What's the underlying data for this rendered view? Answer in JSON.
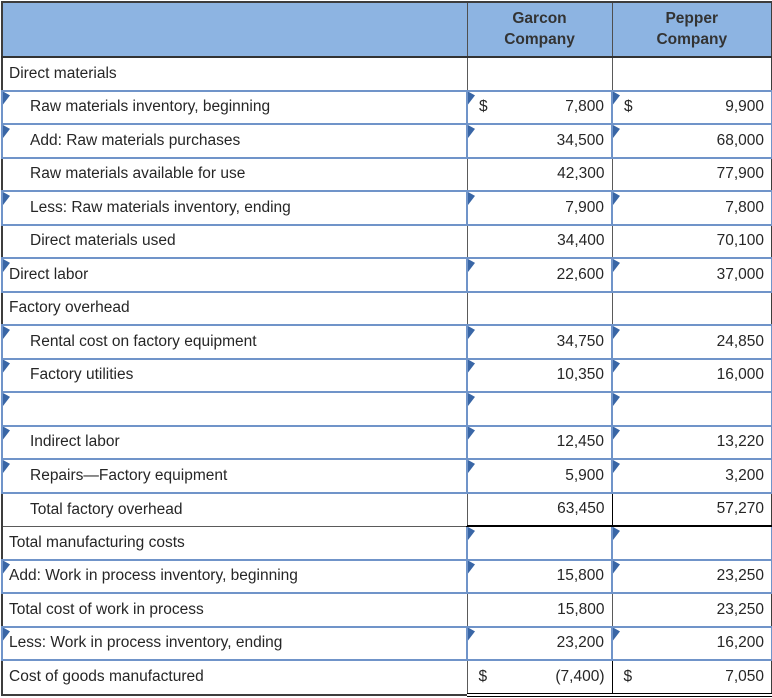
{
  "table": {
    "columns": [
      {
        "label": ""
      },
      {
        "label": "Garcon Company"
      },
      {
        "label": "Pepper Company"
      }
    ],
    "rows": [
      {
        "label": "Direct materials",
        "type": "section",
        "indent": false,
        "garcon": "",
        "pepper": ""
      },
      {
        "label": "Raw materials inventory, beginning",
        "type": "entry",
        "indent": true,
        "garcon": "7,800",
        "pepper": "9,900",
        "garcon_dollar": "$",
        "pepper_dollar": "$"
      },
      {
        "label": "Add: Raw materials purchases",
        "type": "entry",
        "indent": true,
        "garcon": "34,500",
        "pepper": "68,000"
      },
      {
        "label": "Raw materials available for use",
        "type": "computed",
        "indent": true,
        "garcon": "42,300",
        "pepper": "77,900"
      },
      {
        "label": "Less: Raw materials inventory, ending",
        "type": "entry",
        "indent": true,
        "garcon": "7,900",
        "pepper": "7,800"
      },
      {
        "label": "Direct materials used",
        "type": "computed",
        "indent": true,
        "garcon": "34,400",
        "pepper": "70,100"
      },
      {
        "label": "Direct labor",
        "type": "entry",
        "indent": false,
        "garcon": "22,600",
        "pepper": "37,000"
      },
      {
        "label": "Factory overhead",
        "type": "section",
        "indent": false,
        "garcon": "",
        "pepper": ""
      },
      {
        "label": "Rental cost on factory equipment",
        "type": "entry",
        "indent": true,
        "garcon": "34,750",
        "pepper": "24,850"
      },
      {
        "label": "Factory utilities",
        "type": "entry",
        "indent": true,
        "garcon": "10,350",
        "pepper": "16,000"
      },
      {
        "label": "",
        "type": "entry",
        "indent": true,
        "garcon": "",
        "pepper": ""
      },
      {
        "label": "Indirect labor",
        "type": "entry",
        "indent": true,
        "garcon": "12,450",
        "pepper": "13,220"
      },
      {
        "label": "Repairs—Factory equipment",
        "type": "entry",
        "indent": true,
        "garcon": "5,900",
        "pepper": "3,200"
      },
      {
        "label": "Total factory overhead",
        "type": "subtotal",
        "indent": true,
        "garcon": "63,450",
        "pepper": "57,270"
      },
      {
        "label": "Total manufacturing costs",
        "type": "entry_values_only",
        "indent": false,
        "garcon": "",
        "pepper": ""
      },
      {
        "label": "Add: Work in process inventory, beginning",
        "type": "entry",
        "indent": false,
        "garcon": "15,800",
        "pepper": "23,250"
      },
      {
        "label": "Total cost of work in process",
        "type": "computed",
        "indent": false,
        "garcon": "15,800",
        "pepper": "23,250"
      },
      {
        "label": "Less: Work in process inventory, ending",
        "type": "entry",
        "indent": false,
        "garcon": "23,200",
        "pepper": "16,200"
      },
      {
        "label": "Cost of goods manufactured",
        "type": "final",
        "indent": false,
        "garcon": "(7,400)",
        "pepper": "7,050",
        "garcon_dollar": "$",
        "pepper_dollar": "$"
      }
    ]
  },
  "colors": {
    "header_bg": "#8DB4E2",
    "header_text": "#333333",
    "entry_border": "#7094C9",
    "entry_marker": "#3966A6",
    "grid_line": "#5A5A5A",
    "total_border": "#000000",
    "body_text": "#262626"
  }
}
